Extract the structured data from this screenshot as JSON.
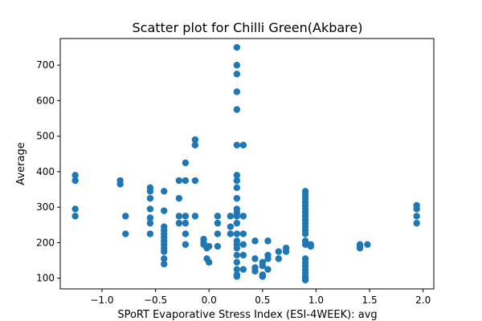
{
  "chart_data": {
    "type": "scatter",
    "title": "Scatter plot for Chilli Green(Akbare)",
    "xlabel": "SPoRT Evaporative Stress Index (ESI-4WEEK): avg",
    "ylabel": "Average",
    "xlim": [
      -1.39,
      2.1
    ],
    "ylim": [
      70,
      775
    ],
    "xticks": [
      -1.0,
      -0.5,
      0.0,
      0.5,
      1.0,
      1.5,
      2.0
    ],
    "xtick_labels": [
      "−1.0",
      "−0.5",
      "0.0",
      "0.5",
      "1.0",
      "1.5",
      "2.0"
    ],
    "yticks": [
      100,
      200,
      300,
      400,
      500,
      600,
      700
    ],
    "ytick_labels": [
      "100",
      "200",
      "300",
      "400",
      "500",
      "600",
      "700"
    ],
    "grid": false,
    "legend": "none",
    "marker_color": "#1f77b4",
    "points": [
      [
        -1.25,
        390
      ],
      [
        -1.25,
        375
      ],
      [
        -1.25,
        295
      ],
      [
        -1.25,
        275
      ],
      [
        -0.83,
        375
      ],
      [
        -0.83,
        365
      ],
      [
        -0.78,
        275
      ],
      [
        -0.78,
        225
      ],
      [
        -0.55,
        355
      ],
      [
        -0.55,
        345
      ],
      [
        -0.55,
        325
      ],
      [
        -0.55,
        295
      ],
      [
        -0.55,
        270
      ],
      [
        -0.55,
        255
      ],
      [
        -0.55,
        225
      ],
      [
        -0.42,
        345
      ],
      [
        -0.42,
        290
      ],
      [
        -0.42,
        245
      ],
      [
        -0.42,
        235
      ],
      [
        -0.42,
        225
      ],
      [
        -0.42,
        215
      ],
      [
        -0.42,
        205
      ],
      [
        -0.42,
        195
      ],
      [
        -0.42,
        185
      ],
      [
        -0.42,
        175
      ],
      [
        -0.42,
        155
      ],
      [
        -0.42,
        140
      ],
      [
        -0.28,
        375
      ],
      [
        -0.28,
        325
      ],
      [
        -0.28,
        275
      ],
      [
        -0.28,
        255
      ],
      [
        -0.22,
        425
      ],
      [
        -0.22,
        375
      ],
      [
        -0.22,
        275
      ],
      [
        -0.22,
        255
      ],
      [
        -0.22,
        225
      ],
      [
        -0.22,
        195
      ],
      [
        -0.13,
        490
      ],
      [
        -0.13,
        475
      ],
      [
        -0.13,
        375
      ],
      [
        -0.13,
        275
      ],
      [
        -0.05,
        210
      ],
      [
        -0.05,
        200
      ],
      [
        -0.05,
        195
      ],
      [
        -0.02,
        185
      ],
      [
        -0.02,
        155
      ],
      [
        0.0,
        145
      ],
      [
        0.0,
        190
      ],
      [
        0.08,
        275
      ],
      [
        0.08,
        255
      ],
      [
        0.08,
        225
      ],
      [
        0.08,
        190
      ],
      [
        0.2,
        275
      ],
      [
        0.2,
        245
      ],
      [
        0.2,
        225
      ],
      [
        0.26,
        750
      ],
      [
        0.26,
        700
      ],
      [
        0.26,
        675
      ],
      [
        0.26,
        625
      ],
      [
        0.26,
        575
      ],
      [
        0.26,
        475
      ],
      [
        0.26,
        390
      ],
      [
        0.26,
        375
      ],
      [
        0.26,
        355
      ],
      [
        0.26,
        325
      ],
      [
        0.26,
        295
      ],
      [
        0.26,
        285
      ],
      [
        0.26,
        275
      ],
      [
        0.26,
        255
      ],
      [
        0.26,
        225
      ],
      [
        0.26,
        205
      ],
      [
        0.26,
        195
      ],
      [
        0.26,
        185
      ],
      [
        0.26,
        165
      ],
      [
        0.26,
        145
      ],
      [
        0.26,
        125
      ],
      [
        0.26,
        110
      ],
      [
        0.26,
        105
      ],
      [
        0.32,
        475
      ],
      [
        0.32,
        275
      ],
      [
        0.32,
        225
      ],
      [
        0.32,
        195
      ],
      [
        0.32,
        165
      ],
      [
        0.32,
        125
      ],
      [
        0.43,
        205
      ],
      [
        0.43,
        155
      ],
      [
        0.43,
        130
      ],
      [
        0.43,
        120
      ],
      [
        0.5,
        145
      ],
      [
        0.5,
        135
      ],
      [
        0.5,
        110
      ],
      [
        0.5,
        105
      ],
      [
        0.55,
        205
      ],
      [
        0.55,
        165
      ],
      [
        0.55,
        155
      ],
      [
        0.55,
        125
      ],
      [
        0.65,
        175
      ],
      [
        0.65,
        155
      ],
      [
        0.72,
        185
      ],
      [
        0.72,
        175
      ],
      [
        0.9,
        345
      ],
      [
        0.9,
        335
      ],
      [
        0.9,
        325
      ],
      [
        0.9,
        315
      ],
      [
        0.9,
        305
      ],
      [
        0.9,
        295
      ],
      [
        0.9,
        285
      ],
      [
        0.9,
        275
      ],
      [
        0.9,
        265
      ],
      [
        0.9,
        255
      ],
      [
        0.9,
        245
      ],
      [
        0.9,
        235
      ],
      [
        0.9,
        225
      ],
      [
        0.9,
        205
      ],
      [
        0.9,
        195
      ],
      [
        0.9,
        155
      ],
      [
        0.9,
        145
      ],
      [
        0.9,
        135
      ],
      [
        0.9,
        125
      ],
      [
        0.9,
        115
      ],
      [
        0.9,
        105
      ],
      [
        0.9,
        100
      ],
      [
        0.9,
        95
      ],
      [
        0.95,
        195
      ],
      [
        0.95,
        190
      ],
      [
        1.41,
        195
      ],
      [
        1.41,
        190
      ],
      [
        1.41,
        185
      ],
      [
        1.48,
        195
      ],
      [
        1.94,
        305
      ],
      [
        1.94,
        295
      ],
      [
        1.94,
        275
      ],
      [
        1.94,
        255
      ]
    ]
  }
}
